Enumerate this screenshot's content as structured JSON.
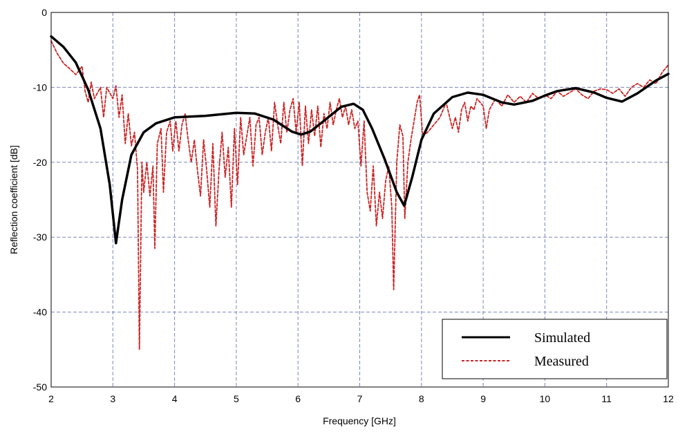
{
  "chart_data": {
    "type": "line",
    "title": "",
    "xlabel": "Frequency [GHz]",
    "ylabel": "Reflection coefficient [dB]",
    "xlim": [
      2,
      12
    ],
    "ylim": [
      -50,
      0
    ],
    "x_ticks": [
      "2",
      "3",
      "4",
      "5",
      "6",
      "7",
      "8",
      "9",
      "10",
      "11",
      "12"
    ],
    "y_ticks": [
      "0",
      "-10",
      "-20",
      "-30",
      "-40",
      "-50"
    ],
    "grid": true,
    "legend_position": "bottom-right",
    "series": [
      {
        "name": "Simulated",
        "color": "#000000",
        "style": "solid",
        "points": [
          [
            2.0,
            -3.2
          ],
          [
            2.2,
            -4.6
          ],
          [
            2.4,
            -6.7
          ],
          [
            2.6,
            -10.3
          ],
          [
            2.8,
            -15.5
          ],
          [
            2.95,
            -23.0
          ],
          [
            3.05,
            -30.8
          ],
          [
            3.15,
            -25.0
          ],
          [
            3.3,
            -19.0
          ],
          [
            3.5,
            -16.0
          ],
          [
            3.7,
            -14.8
          ],
          [
            4.0,
            -14.0
          ],
          [
            4.5,
            -13.8
          ],
          [
            5.0,
            -13.4
          ],
          [
            5.3,
            -13.5
          ],
          [
            5.6,
            -14.3
          ],
          [
            5.9,
            -15.9
          ],
          [
            6.05,
            -16.3
          ],
          [
            6.2,
            -15.9
          ],
          [
            6.4,
            -14.6
          ],
          [
            6.7,
            -12.6
          ],
          [
            6.9,
            -12.2
          ],
          [
            7.05,
            -13.0
          ],
          [
            7.2,
            -15.5
          ],
          [
            7.4,
            -19.5
          ],
          [
            7.6,
            -24.0
          ],
          [
            7.72,
            -25.8
          ],
          [
            7.85,
            -22.0
          ],
          [
            8.0,
            -17.0
          ],
          [
            8.2,
            -13.5
          ],
          [
            8.5,
            -11.3
          ],
          [
            8.75,
            -10.7
          ],
          [
            9.0,
            -11.0
          ],
          [
            9.3,
            -12.0
          ],
          [
            9.5,
            -12.3
          ],
          [
            9.8,
            -11.8
          ],
          [
            10.0,
            -11.1
          ],
          [
            10.2,
            -10.5
          ],
          [
            10.5,
            -10.1
          ],
          [
            10.8,
            -10.7
          ],
          [
            11.0,
            -11.4
          ],
          [
            11.25,
            -11.9
          ],
          [
            11.5,
            -10.8
          ],
          [
            11.8,
            -9.1
          ],
          [
            12.0,
            -8.2
          ]
        ]
      },
      {
        "name": "Measured",
        "color": "#cc2222",
        "style": "dashed",
        "points": [
          [
            2.0,
            -3.8
          ],
          [
            2.1,
            -5.5
          ],
          [
            2.2,
            -6.8
          ],
          [
            2.3,
            -7.5
          ],
          [
            2.4,
            -8.3
          ],
          [
            2.5,
            -7.2
          ],
          [
            2.55,
            -10.5
          ],
          [
            2.6,
            -12.0
          ],
          [
            2.65,
            -9.3
          ],
          [
            2.7,
            -11.5
          ],
          [
            2.8,
            -10.0
          ],
          [
            2.85,
            -14.0
          ],
          [
            2.9,
            -10.0
          ],
          [
            3.0,
            -11.5
          ],
          [
            3.05,
            -9.8
          ],
          [
            3.1,
            -14.0
          ],
          [
            3.15,
            -11.0
          ],
          [
            3.2,
            -17.5
          ],
          [
            3.25,
            -13.5
          ],
          [
            3.3,
            -17.8
          ],
          [
            3.35,
            -16.0
          ],
          [
            3.4,
            -21.0
          ],
          [
            3.43,
            -45.0
          ],
          [
            3.47,
            -20.0
          ],
          [
            3.5,
            -24.0
          ],
          [
            3.55,
            -20.0
          ],
          [
            3.6,
            -24.5
          ],
          [
            3.65,
            -20.5
          ],
          [
            3.68,
            -31.5
          ],
          [
            3.72,
            -17.5
          ],
          [
            3.78,
            -15.5
          ],
          [
            3.82,
            -24.0
          ],
          [
            3.87,
            -16.0
          ],
          [
            3.93,
            -14.5
          ],
          [
            3.97,
            -18.5
          ],
          [
            4.02,
            -14.5
          ],
          [
            4.07,
            -18.5
          ],
          [
            4.12,
            -15.0
          ],
          [
            4.17,
            -13.5
          ],
          [
            4.22,
            -17.0
          ],
          [
            4.27,
            -20.0
          ],
          [
            4.32,
            -17.0
          ],
          [
            4.37,
            -21.0
          ],
          [
            4.42,
            -24.5
          ],
          [
            4.47,
            -17.0
          ],
          [
            4.52,
            -21.0
          ],
          [
            4.57,
            -26.0
          ],
          [
            4.62,
            -17.5
          ],
          [
            4.67,
            -28.5
          ],
          [
            4.72,
            -21.0
          ],
          [
            4.77,
            -16.0
          ],
          [
            4.82,
            -22.0
          ],
          [
            4.87,
            -18.0
          ],
          [
            4.92,
            -26.0
          ],
          [
            4.97,
            -15.5
          ],
          [
            5.02,
            -23.0
          ],
          [
            5.07,
            -14.0
          ],
          [
            5.12,
            -19.0
          ],
          [
            5.17,
            -16.5
          ],
          [
            5.22,
            -14.0
          ],
          [
            5.27,
            -20.5
          ],
          [
            5.32,
            -15.0
          ],
          [
            5.37,
            -14.0
          ],
          [
            5.42,
            -19.0
          ],
          [
            5.47,
            -16.0
          ],
          [
            5.52,
            -14.0
          ],
          [
            5.57,
            -18.5
          ],
          [
            5.62,
            -12.0
          ],
          [
            5.67,
            -15.0
          ],
          [
            5.72,
            -17.5
          ],
          [
            5.77,
            -12.0
          ],
          [
            5.82,
            -16.0
          ],
          [
            5.87,
            -13.0
          ],
          [
            5.92,
            -11.5
          ],
          [
            5.97,
            -16.0
          ],
          [
            6.02,
            -12.0
          ],
          [
            6.07,
            -20.5
          ],
          [
            6.12,
            -12.5
          ],
          [
            6.17,
            -17.5
          ],
          [
            6.22,
            -13.0
          ],
          [
            6.27,
            -16.5
          ],
          [
            6.32,
            -12.5
          ],
          [
            6.37,
            -18.0
          ],
          [
            6.42,
            -13.5
          ],
          [
            6.47,
            -15.5
          ],
          [
            6.52,
            -12.0
          ],
          [
            6.57,
            -15.0
          ],
          [
            6.62,
            -13.0
          ],
          [
            6.67,
            -11.5
          ],
          [
            6.72,
            -14.0
          ],
          [
            6.77,
            -12.5
          ],
          [
            6.82,
            -15.0
          ],
          [
            6.87,
            -13.0
          ],
          [
            6.92,
            -15.5
          ],
          [
            6.97,
            -14.5
          ],
          [
            7.02,
            -20.5
          ],
          [
            7.07,
            -14.5
          ],
          [
            7.12,
            -24.0
          ],
          [
            7.17,
            -26.5
          ],
          [
            7.22,
            -20.5
          ],
          [
            7.27,
            -28.5
          ],
          [
            7.32,
            -24.0
          ],
          [
            7.37,
            -27.5
          ],
          [
            7.42,
            -22.5
          ],
          [
            7.47,
            -20.5
          ],
          [
            7.52,
            -26.0
          ],
          [
            7.55,
            -37.0
          ],
          [
            7.6,
            -20.0
          ],
          [
            7.65,
            -15.0
          ],
          [
            7.7,
            -16.5
          ],
          [
            7.73,
            -27.5
          ],
          [
            7.78,
            -20.0
          ],
          [
            7.83,
            -17.0
          ],
          [
            7.88,
            -14.5
          ],
          [
            7.93,
            -12.0
          ],
          [
            7.97,
            -11.0
          ],
          [
            8.02,
            -16.5
          ],
          [
            8.1,
            -16.0
          ],
          [
            8.2,
            -15.0
          ],
          [
            8.3,
            -14.0
          ],
          [
            8.4,
            -12.0
          ],
          [
            8.5,
            -15.5
          ],
          [
            8.55,
            -14.0
          ],
          [
            8.6,
            -16.0
          ],
          [
            8.65,
            -13.0
          ],
          [
            8.7,
            -12.0
          ],
          [
            8.75,
            -14.5
          ],
          [
            8.8,
            -12.5
          ],
          [
            8.85,
            -13.0
          ],
          [
            8.9,
            -11.5
          ],
          [
            9.0,
            -12.5
          ],
          [
            9.05,
            -15.5
          ],
          [
            9.1,
            -13.0
          ],
          [
            9.2,
            -11.5
          ],
          [
            9.3,
            -12.5
          ],
          [
            9.4,
            -11.0
          ],
          [
            9.5,
            -12.0
          ],
          [
            9.6,
            -11.2
          ],
          [
            9.7,
            -12.0
          ],
          [
            9.8,
            -10.8
          ],
          [
            9.9,
            -11.5
          ],
          [
            10.0,
            -11.0
          ],
          [
            10.1,
            -11.5
          ],
          [
            10.2,
            -10.5
          ],
          [
            10.3,
            -11.2
          ],
          [
            10.5,
            -10.2
          ],
          [
            10.6,
            -11.0
          ],
          [
            10.7,
            -11.5
          ],
          [
            10.8,
            -10.5
          ],
          [
            10.9,
            -10.2
          ],
          [
            11.0,
            -10.3
          ],
          [
            11.1,
            -10.8
          ],
          [
            11.2,
            -10.2
          ],
          [
            11.3,
            -11.2
          ],
          [
            11.4,
            -10.0
          ],
          [
            11.5,
            -9.5
          ],
          [
            11.6,
            -10.0
          ],
          [
            11.7,
            -9.0
          ],
          [
            11.8,
            -9.5
          ],
          [
            11.9,
            -8.0
          ],
          [
            12.0,
            -7.0
          ]
        ]
      }
    ]
  }
}
